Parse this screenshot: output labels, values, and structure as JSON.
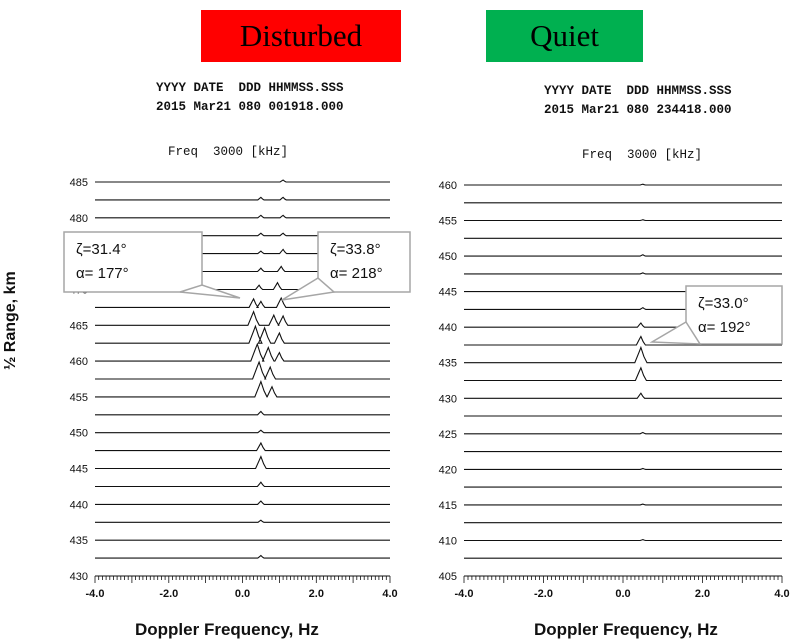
{
  "badges": {
    "left": {
      "label": "Disturbed",
      "color": "#ff0000"
    },
    "right": {
      "label": "Quiet",
      "color": "#00b050"
    }
  },
  "panels": [
    {
      "header_fields": "YYYY DATE  DDD HHMMSS.SSS",
      "header_values": "2015 Mar21 080 001918.000",
      "freq_label": "Freq  3000 [kHz]"
    },
    {
      "header_fields": "YYYY DATE  DDD HHMMSS.SSS",
      "header_values": "2015 Mar21 080 234418.000",
      "freq_label": "Freq  3000 [kHz]"
    }
  ],
  "xlabel": "Doppler Frequency, Hz",
  "ylabel": "½ Range, km",
  "chart_data": [
    {
      "type": "line",
      "title": "Disturbed",
      "xlabel": "Doppler Frequency, Hz",
      "ylabel": "½ Range, km",
      "xlim": [
        -4.0,
        4.0
      ],
      "xticks": [
        "-4.0",
        "-2.0",
        "0.0",
        "2.0",
        "4.0"
      ],
      "ylim": [
        430,
        485
      ],
      "yticks": [
        430,
        435,
        440,
        445,
        450,
        455,
        460,
        465,
        470,
        475,
        480,
        485
      ],
      "ranges_km": [
        430,
        432.5,
        435,
        437.5,
        440,
        442.5,
        445,
        447.5,
        450,
        452.5,
        455,
        457.5,
        460,
        462.5,
        465,
        467.5,
        470,
        472.5,
        475,
        477.5,
        480,
        482.5,
        485
      ],
      "peaks": [
        {
          "range": 485,
          "freq": 1.1,
          "amp": 0.12
        },
        {
          "range": 482.5,
          "freq": 0.5,
          "amp": 0.15
        },
        {
          "range": 482.5,
          "freq": 1.1,
          "amp": 0.15
        },
        {
          "range": 480,
          "freq": 0.5,
          "amp": 0.15
        },
        {
          "range": 480,
          "freq": 1.1,
          "amp": 0.15
        },
        {
          "range": 477.5,
          "freq": 0.5,
          "amp": 0.15
        },
        {
          "range": 477.5,
          "freq": 1.1,
          "amp": 0.15
        },
        {
          "range": 475,
          "freq": 0.5,
          "amp": 0.15
        },
        {
          "range": 475,
          "freq": 1.1,
          "amp": 0.25
        },
        {
          "range": 472.5,
          "freq": 0.5,
          "amp": 0.2
        },
        {
          "range": 472.5,
          "freq": 1.05,
          "amp": 0.3
        },
        {
          "range": 470,
          "freq": 0.45,
          "amp": 0.25
        },
        {
          "range": 470,
          "freq": 0.95,
          "amp": 0.4
        },
        {
          "range": 467.5,
          "freq": 0.3,
          "amp": 0.5
        },
        {
          "range": 467.5,
          "freq": 0.5,
          "amp": 0.35
        },
        {
          "range": 467.5,
          "freq": 1.05,
          "amp": 0.55
        },
        {
          "range": 465,
          "freq": 0.3,
          "amp": 0.8
        },
        {
          "range": 465,
          "freq": 0.85,
          "amp": 0.6
        },
        {
          "range": 465,
          "freq": 1.1,
          "amp": 0.55
        },
        {
          "range": 462.5,
          "freq": 0.35,
          "amp": 1.0
        },
        {
          "range": 462.5,
          "freq": 0.6,
          "amp": 0.9
        },
        {
          "range": 462.5,
          "freq": 1.0,
          "amp": 0.6
        },
        {
          "range": 460,
          "freq": 0.4,
          "amp": 1.0
        },
        {
          "range": 460,
          "freq": 0.7,
          "amp": 0.8
        },
        {
          "range": 460,
          "freq": 1.0,
          "amp": 0.5
        },
        {
          "range": 457.5,
          "freq": 0.45,
          "amp": 1.0
        },
        {
          "range": 457.5,
          "freq": 0.75,
          "amp": 0.7
        },
        {
          "range": 455,
          "freq": 0.5,
          "amp": 0.9
        },
        {
          "range": 455,
          "freq": 0.8,
          "amp": 0.6
        },
        {
          "range": 452.5,
          "freq": 0.5,
          "amp": 0.2
        },
        {
          "range": 450,
          "freq": 0.5,
          "amp": 0.15
        },
        {
          "range": 447.5,
          "freq": 0.5,
          "amp": 0.45
        },
        {
          "range": 445,
          "freq": 0.5,
          "amp": 0.7
        },
        {
          "range": 442.5,
          "freq": 0.5,
          "amp": 0.25
        },
        {
          "range": 440,
          "freq": 0.5,
          "amp": 0.2
        },
        {
          "range": 437.5,
          "freq": 0.5,
          "amp": 0.12
        },
        {
          "range": 432.5,
          "freq": 0.5,
          "amp": 0.15
        }
      ],
      "annotations": [
        {
          "lines": [
            "ζ=31.4°",
            "α= 177°"
          ]
        },
        {
          "lines": [
            "ζ=33.8°",
            "α= 218°"
          ]
        }
      ]
    },
    {
      "type": "line",
      "title": "Quiet",
      "xlabel": "Doppler Frequency, Hz",
      "xlim": [
        -4.0,
        4.0
      ],
      "xticks": [
        "-4.0",
        "-2.0",
        "0.0",
        "2.0",
        "4.0"
      ],
      "ylim": [
        405,
        460
      ],
      "yticks": [
        405,
        410,
        415,
        420,
        425,
        430,
        435,
        440,
        445,
        450,
        455,
        460
      ],
      "ranges_km": [
        405,
        407.5,
        410,
        412.5,
        415,
        417.5,
        420,
        422.5,
        425,
        427.5,
        430,
        432.5,
        435,
        437.5,
        440,
        442.5,
        445,
        447.5,
        450,
        452.5,
        455,
        457.5,
        460
      ],
      "peaks": [
        {
          "range": 460,
          "freq": 0.5,
          "amp": 0.05
        },
        {
          "range": 455,
          "freq": 0.5,
          "amp": 0.05
        },
        {
          "range": 450,
          "freq": 0.5,
          "amp": 0.08
        },
        {
          "range": 447.5,
          "freq": 0.5,
          "amp": 0.06
        },
        {
          "range": 442.5,
          "freq": 0.5,
          "amp": 0.1
        },
        {
          "range": 440,
          "freq": 0.45,
          "amp": 0.25
        },
        {
          "range": 437.5,
          "freq": 0.45,
          "amp": 0.5
        },
        {
          "range": 435,
          "freq": 0.45,
          "amp": 0.9
        },
        {
          "range": 432.5,
          "freq": 0.45,
          "amp": 0.75
        },
        {
          "range": 430,
          "freq": 0.45,
          "amp": 0.3
        },
        {
          "range": 425,
          "freq": 0.5,
          "amp": 0.08
        },
        {
          "range": 420,
          "freq": 0.5,
          "amp": 0.05
        },
        {
          "range": 415,
          "freq": 0.5,
          "amp": 0.05
        },
        {
          "range": 410,
          "freq": 0.5,
          "amp": 0.05
        }
      ],
      "annotations": [
        {
          "lines": [
            "ζ=33.0°",
            "α= 192°"
          ]
        }
      ]
    }
  ]
}
